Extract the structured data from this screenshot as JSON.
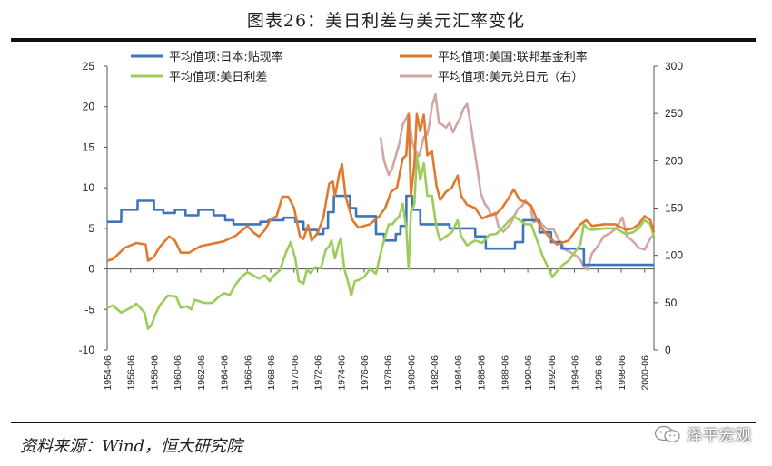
{
  "header": {
    "title": "图表26：美日利差与美元汇率变化"
  },
  "footer": {
    "source": "资料来源：Wind，恒大研究院",
    "watermark": "泽平宏观"
  },
  "colors": {
    "japan": "#3E74B8",
    "us": "#E07A2E",
    "spread": "#9ACD5A",
    "usdjpy": "#D4A5A5"
  },
  "chart_data": {
    "type": "line",
    "title": "图表26：美日利差与美元汇率变化",
    "xlabel": "",
    "ylabel": "",
    "ylim": [
      -10,
      25
    ],
    "y2lim": [
      0,
      300
    ],
    "yticks": [
      "25",
      "20",
      "15",
      "10",
      "5",
      "0",
      "-5",
      "-10"
    ],
    "y2ticks": [
      "300",
      "250",
      "200",
      "150",
      "100",
      "50",
      "0"
    ],
    "x_categories": [
      "1954-06",
      "1956-06",
      "1958-06",
      "1960-06",
      "1962-06",
      "1964-06",
      "1966-06",
      "1968-06",
      "1970-06",
      "1972-06",
      "1974-06",
      "1976-06",
      "1978-06",
      "1980-06",
      "1982-06",
      "1984-06",
      "1986-06",
      "1988-06",
      "1990-06",
      "1992-06",
      "1994-06",
      "1996-06",
      "1998-06",
      "2000-06"
    ],
    "x_range": [
      1954.5,
      2001.3
    ],
    "series": [
      {
        "name": "平均值项:日本:贴现率",
        "axis": "left",
        "color_key": "japan",
        "x": [
          1954.5,
          1955.7,
          1955.71,
          1957.1,
          1957.11,
          1958.5,
          1958.51,
          1959.3,
          1959.31,
          1960.3,
          1960.31,
          1961.2,
          1961.21,
          1962.3,
          1962.31,
          1963.6,
          1963.61,
          1964.6,
          1964.61,
          1965.3,
          1965.31,
          1967.6,
          1967.61,
          1968.3,
          1968.31,
          1969.6,
          1969.61,
          1970.6,
          1970.61,
          1971.3,
          1971.31,
          1972.5,
          1972.51,
          1973.0,
          1973.01,
          1973.4,
          1973.41,
          1973.9,
          1973.91,
          1975.3,
          1975.31,
          1975.8,
          1975.81,
          1977.5,
          1977.51,
          1978.2,
          1978.21,
          1979.2,
          1979.21,
          1979.6,
          1979.61,
          1980.1,
          1980.11,
          1980.6,
          1980.61,
          1981.3,
          1981.31,
          1983.8,
          1983.81,
          1986.0,
          1986.01,
          1986.9,
          1986.91,
          1989.4,
          1989.41,
          1990.1,
          1990.11,
          1991.5,
          1991.51,
          1992.5,
          1992.51,
          1993.4,
          1993.41,
          1995.3,
          1995.31,
          2001.3
        ],
        "y": [
          5.8,
          5.8,
          7.3,
          7.3,
          8.4,
          8.4,
          7.3,
          7.3,
          6.9,
          6.9,
          7.3,
          7.3,
          6.6,
          6.6,
          7.3,
          7.3,
          6.6,
          6.6,
          6.0,
          6.0,
          5.5,
          5.5,
          5.8,
          5.8,
          6.0,
          6.0,
          6.3,
          6.3,
          5.8,
          5.8,
          4.8,
          4.8,
          4.3,
          4.3,
          5.0,
          5.0,
          7.0,
          7.0,
          9.0,
          9.0,
          7.5,
          7.5,
          6.5,
          6.5,
          4.3,
          4.3,
          3.5,
          3.5,
          4.3,
          4.3,
          5.3,
          5.3,
          9.0,
          9.0,
          7.3,
          7.3,
          5.5,
          5.5,
          5.0,
          5.0,
          4.0,
          4.0,
          2.5,
          2.5,
          3.3,
          3.3,
          6.0,
          6.0,
          4.5,
          4.5,
          3.3,
          3.3,
          2.5,
          2.5,
          0.5,
          0.5
        ]
      },
      {
        "name": "平均值项:美国:联邦基金利率",
        "axis": "left",
        "color_key": "us",
        "x": [
          1954.5,
          1955.0,
          1955.5,
          1956.0,
          1957.0,
          1957.8,
          1958.0,
          1958.5,
          1959.0,
          1959.8,
          1960.3,
          1960.8,
          1961.5,
          1962.5,
          1963.5,
          1964.5,
          1965.5,
          1966.5,
          1967.0,
          1967.5,
          1968.0,
          1968.5,
          1969.0,
          1969.5,
          1970.0,
          1970.5,
          1971.0,
          1971.3,
          1971.7,
          1972.0,
          1972.5,
          1973.0,
          1973.5,
          1973.8,
          1974.0,
          1974.4,
          1974.6,
          1974.9,
          1975.5,
          1976.0,
          1977.0,
          1977.8,
          1978.3,
          1978.8,
          1979.3,
          1979.8,
          1980.1,
          1980.3,
          1980.5,
          1980.8,
          1981.0,
          1981.3,
          1981.6,
          1981.9,
          1982.3,
          1982.7,
          1983.0,
          1983.5,
          1984.0,
          1984.5,
          1984.8,
          1985.3,
          1986.0,
          1986.6,
          1987.2,
          1987.8,
          1988.3,
          1988.8,
          1989.3,
          1989.8,
          1990.3,
          1990.8,
          1991.3,
          1991.8,
          1992.3,
          1993.0,
          1994.0,
          1994.5,
          1995.0,
          1995.5,
          1996.0,
          1997.0,
          1998.0,
          1998.9,
          1999.5,
          2000.0,
          2000.5,
          2001.0,
          2001.3
        ],
        "y": [
          1.0,
          1.2,
          1.9,
          2.6,
          3.2,
          3.0,
          1.0,
          1.5,
          2.7,
          4.0,
          3.5,
          2.0,
          2.0,
          2.8,
          3.1,
          3.4,
          4.1,
          5.3,
          4.5,
          4.0,
          4.8,
          6.1,
          6.5,
          8.9,
          8.9,
          7.5,
          4.0,
          3.7,
          5.4,
          3.5,
          4.4,
          6.3,
          10.5,
          10.8,
          9.0,
          12.0,
          12.9,
          9.0,
          6.0,
          5.1,
          5.5,
          6.5,
          7.5,
          9.5,
          10.0,
          13.6,
          14.0,
          19.0,
          9.0,
          13.0,
          19.1,
          17.0,
          19.0,
          14.0,
          14.5,
          10.2,
          8.5,
          9.5,
          10.0,
          11.5,
          9.0,
          7.9,
          7.5,
          6.2,
          6.6,
          6.8,
          7.5,
          8.6,
          9.8,
          8.5,
          8.2,
          7.8,
          6.0,
          4.8,
          4.0,
          3.0,
          3.5,
          4.5,
          5.5,
          6.0,
          5.3,
          5.5,
          5.5,
          4.8,
          5.0,
          5.5,
          6.5,
          6.0,
          4.5
        ]
      },
      {
        "name": "平均值项:美日利差",
        "axis": "left",
        "color_key": "spread",
        "x": [
          1954.5,
          1955.0,
          1955.7,
          1956.5,
          1957.0,
          1957.7,
          1958.0,
          1958.3,
          1958.6,
          1959.0,
          1959.7,
          1960.4,
          1960.8,
          1961.3,
          1961.7,
          1962.0,
          1962.8,
          1963.5,
          1964.0,
          1964.5,
          1965.0,
          1965.5,
          1966.0,
          1966.5,
          1967.0,
          1967.5,
          1968.0,
          1968.4,
          1968.8,
          1969.3,
          1969.8,
          1970.2,
          1970.6,
          1970.9,
          1971.3,
          1971.6,
          1971.9,
          1972.3,
          1972.8,
          1973.2,
          1973.5,
          1973.7,
          1974.0,
          1974.3,
          1974.5,
          1974.8,
          1975.1,
          1975.4,
          1975.7,
          1976.0,
          1976.5,
          1977.0,
          1977.5,
          1978.0,
          1978.3,
          1978.6,
          1978.9,
          1979.2,
          1979.5,
          1979.8,
          1980.1,
          1980.3,
          1980.5,
          1980.8,
          1981.0,
          1981.3,
          1981.6,
          1981.9,
          1982.3,
          1982.7,
          1983.0,
          1983.5,
          1984.0,
          1984.5,
          1984.8,
          1985.3,
          1986.0,
          1986.6,
          1987.2,
          1987.8,
          1988.3,
          1988.8,
          1989.3,
          1989.8,
          1990.3,
          1990.8,
          1991.3,
          1991.8,
          1992.3,
          1992.6,
          1993.0,
          1993.5,
          1994.0,
          1994.5,
          1995.0,
          1995.3,
          1995.6,
          1996.0,
          1997.0,
          1998.0,
          1998.9,
          1999.5,
          2000.0,
          2000.5,
          2001.0,
          2001.3
        ],
        "y": [
          -4.8,
          -4.5,
          -5.4,
          -4.8,
          -4.3,
          -5.4,
          -7.4,
          -6.9,
          -5.7,
          -4.5,
          -3.3,
          -3.4,
          -4.8,
          -4.6,
          -5.0,
          -3.8,
          -4.2,
          -4.2,
          -3.5,
          -3.0,
          -3.2,
          -1.9,
          -1.0,
          -0.4,
          -0.8,
          -1.2,
          -0.8,
          -1.5,
          -0.8,
          -0.1,
          2.0,
          3.3,
          1.3,
          -1.5,
          -1.8,
          -0.1,
          -0.5,
          0.2,
          0.1,
          2.3,
          2.8,
          3.5,
          1.3,
          3.0,
          3.8,
          0.0,
          -1.5,
          -3.3,
          -1.5,
          -1.4,
          -1.0,
          0.0,
          -0.6,
          2.5,
          4.0,
          5.5,
          5.5,
          6.0,
          6.5,
          8.0,
          5.0,
          0.0,
          7.0,
          8.0,
          14.0,
          11.0,
          13.0,
          9.0,
          9.0,
          5.0,
          3.5,
          4.0,
          4.5,
          6.0,
          4.0,
          2.9,
          3.5,
          3.2,
          4.2,
          4.3,
          5.0,
          5.8,
          6.5,
          6.0,
          5.5,
          5.5,
          3.5,
          1.5,
          0.0,
          -1.0,
          -0.3,
          0.5,
          1.0,
          2.0,
          3.0,
          5.5,
          5.0,
          4.8,
          5.0,
          5.0,
          4.3,
          4.5,
          5.0,
          6.0,
          5.5,
          4.0
        ]
      },
      {
        "name": "平均值项:美元兑日元（右）",
        "axis": "right",
        "color_key": "usdjpy",
        "x": [
          1977.9,
          1978.2,
          1978.6,
          1978.9,
          1979.2,
          1979.5,
          1979.8,
          1980.1,
          1980.3,
          1980.6,
          1980.9,
          1981.2,
          1981.6,
          1981.9,
          1982.1,
          1982.3,
          1982.6,
          1982.9,
          1983.2,
          1983.5,
          1983.8,
          1984.1,
          1984.4,
          1984.7,
          1985.0,
          1985.3,
          1985.6,
          1985.9,
          1986.2,
          1986.5,
          1986.8,
          1987.1,
          1987.4,
          1987.7,
          1988.0,
          1988.4,
          1988.8,
          1989.1,
          1989.4,
          1989.7,
          1990.0,
          1990.3,
          1990.7,
          1991.0,
          1991.4,
          1991.8,
          1992.2,
          1992.7,
          1993.2,
          1993.7,
          1994.2,
          1994.7,
          1995.0,
          1995.3,
          1995.6,
          1996.0,
          1996.5,
          1997.0,
          1997.5,
          1998.0,
          1998.6,
          1999.0,
          1999.5,
          2000.0,
          2000.5,
          2001.0,
          2001.3
        ],
        "y": [
          225,
          200,
          185,
          192,
          205,
          218,
          238,
          245,
          250,
          220,
          210,
          205,
          225,
          228,
          240,
          258,
          270,
          240,
          238,
          235,
          240,
          230,
          238,
          245,
          255,
          260,
          240,
          215,
          190,
          165,
          155,
          150,
          142,
          145,
          130,
          125,
          130,
          135,
          143,
          150,
          152,
          158,
          152,
          135,
          137,
          132,
          127,
          128,
          115,
          106,
          103,
          99,
          95,
          88,
          85,
          102,
          110,
          120,
          123,
          128,
          140,
          120,
          115,
          108,
          106,
          118,
          122
        ]
      }
    ],
    "legend": [
      {
        "label": "平均值项:日本:贴现率",
        "color_key": "japan"
      },
      {
        "label": "平均值项:美国:联邦基金利率",
        "color_key": "us"
      },
      {
        "label": "平均值项:美日利差",
        "color_key": "spread"
      },
      {
        "label": "平均值项:美元兑日元（右）",
        "color_key": "usdjpy"
      }
    ],
    "legend_position": "top"
  }
}
